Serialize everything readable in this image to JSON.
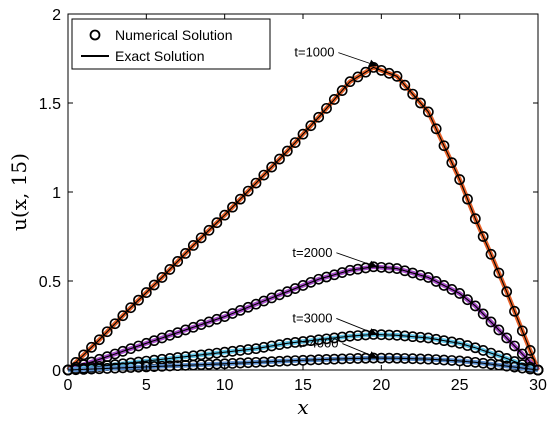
{
  "colors": {
    "background": "#ffffff",
    "axis": "#000000",
    "exact_line": "#000000",
    "marker_edge": "#000000"
  },
  "chart_data": {
    "type": "line",
    "xlabel": "x",
    "ylabel": "u(x, 15)",
    "xlim": [
      0,
      30
    ],
    "ylim": [
      0,
      2
    ],
    "xticks": [
      0,
      5,
      10,
      15,
      20,
      25,
      30
    ],
    "yticks": [
      0,
      0.5,
      1,
      1.5,
      2
    ],
    "ytick_labels": [
      "0",
      "0.5",
      "1",
      "1.5",
      "2"
    ],
    "grid": false,
    "legend": {
      "placement": "top-left",
      "entries": [
        {
          "label": "Numerical Solution",
          "marker": "circle"
        },
        {
          "label": "Exact Solution",
          "marker": "line"
        }
      ]
    },
    "series": [
      {
        "name": "t=1000",
        "color": "#E8622A",
        "x": [
          0,
          2,
          4,
          6,
          8,
          10,
          12,
          14,
          16,
          18,
          19.5,
          21,
          23,
          25,
          26,
          27,
          28,
          29,
          30
        ],
        "values": [
          0,
          0.17,
          0.35,
          0.52,
          0.7,
          0.87,
          1.05,
          1.23,
          1.42,
          1.62,
          1.7,
          1.65,
          1.45,
          1.07,
          0.85,
          0.65,
          0.44,
          0.22,
          0
        ]
      },
      {
        "name": "t=2000",
        "color": "#A54BC8",
        "x": [
          0,
          2,
          4,
          6,
          8,
          10,
          12,
          14,
          16,
          18,
          19.5,
          21,
          23,
          25,
          26,
          27,
          28,
          29,
          30
        ],
        "values": [
          0,
          0.06,
          0.12,
          0.18,
          0.24,
          0.3,
          0.37,
          0.44,
          0.51,
          0.56,
          0.58,
          0.57,
          0.52,
          0.43,
          0.36,
          0.27,
          0.18,
          0.09,
          0
        ]
      },
      {
        "name": "t=3000",
        "color": "#60C6E8",
        "x": [
          0,
          2,
          4,
          6,
          8,
          10,
          12,
          14,
          16,
          18,
          19.5,
          21,
          23,
          25,
          26,
          27,
          28,
          29,
          30
        ],
        "values": [
          0,
          0.02,
          0.04,
          0.06,
          0.08,
          0.1,
          0.12,
          0.15,
          0.17,
          0.19,
          0.2,
          0.195,
          0.18,
          0.15,
          0.125,
          0.095,
          0.065,
          0.03,
          0
        ]
      },
      {
        "name": "t=4000",
        "color": "#5B8FD0",
        "x": [
          0,
          2,
          4,
          6,
          8,
          10,
          12,
          14,
          16,
          18,
          19.5,
          21,
          23,
          25,
          26,
          27,
          28,
          29,
          30
        ],
        "values": [
          0,
          0.007,
          0.014,
          0.021,
          0.028,
          0.035,
          0.043,
          0.051,
          0.058,
          0.064,
          0.067,
          0.066,
          0.061,
          0.051,
          0.043,
          0.033,
          0.022,
          0.011,
          0
        ]
      }
    ],
    "annotations": [
      {
        "text": "t=1000",
        "x": 19.3,
        "y": 1.71
      },
      {
        "text": "t=2000",
        "x": 19.3,
        "y": 0.58
      },
      {
        "text": "t=3000",
        "x": 19.3,
        "y": 0.2
      },
      {
        "text": "t=4000",
        "x": 19.3,
        "y": 0.07
      }
    ]
  }
}
